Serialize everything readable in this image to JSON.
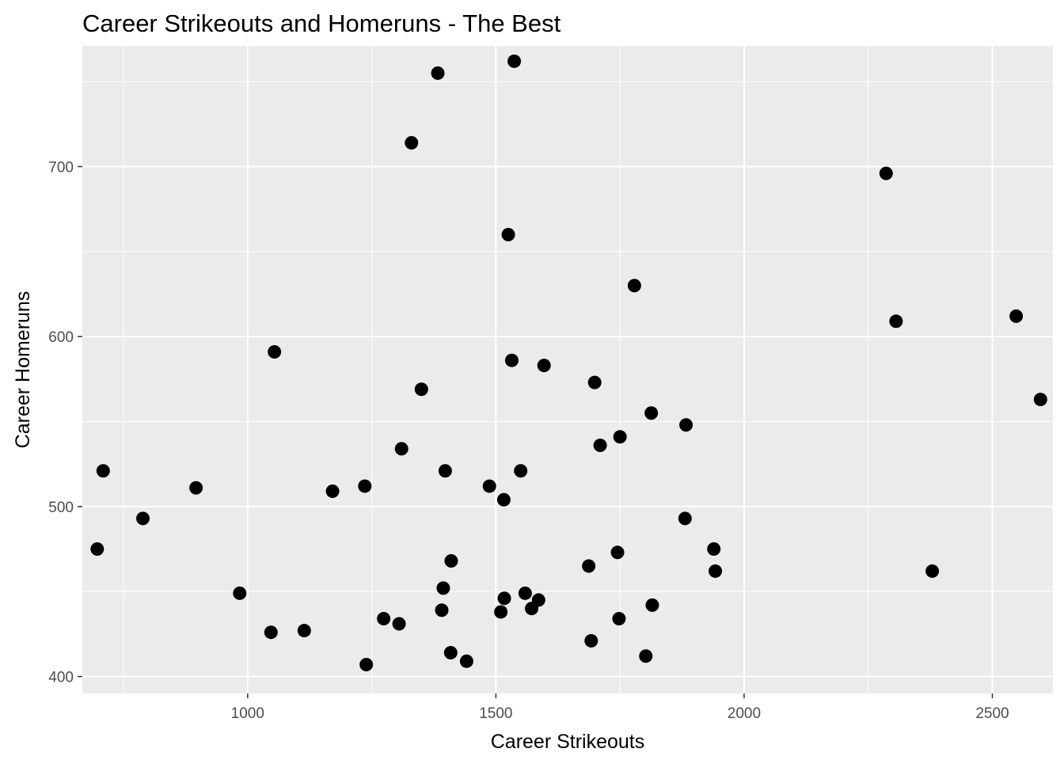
{
  "chart_data": {
    "type": "scatter",
    "title": "Career Strikeouts and Homeruns - The Best",
    "xlabel": "Career Strikeouts",
    "ylabel": "Career Homeruns",
    "xlim": [
      667,
      2622
    ],
    "ylim": [
      390,
      771
    ],
    "xticks": [
      1000,
      1500,
      2000,
      2500
    ],
    "yticks": [
      400,
      500,
      600,
      700
    ],
    "grid": true,
    "colors": {
      "panel": "#ebebeb",
      "grid": "#ffffff",
      "point": "#000000",
      "tick": "#4d4d4d"
    },
    "points": [
      {
        "x": 1383,
        "y": 755
      },
      {
        "x": 1537,
        "y": 762
      },
      {
        "x": 1330,
        "y": 714
      },
      {
        "x": 2286,
        "y": 696
      },
      {
        "x": 1525,
        "y": 660
      },
      {
        "x": 1779,
        "y": 630
      },
      {
        "x": 2548,
        "y": 612
      },
      {
        "x": 2306,
        "y": 609
      },
      {
        "x": 1054,
        "y": 591
      },
      {
        "x": 1532,
        "y": 586
      },
      {
        "x": 1597,
        "y": 583
      },
      {
        "x": 1699,
        "y": 573
      },
      {
        "x": 1350,
        "y": 569
      },
      {
        "x": 2597,
        "y": 563
      },
      {
        "x": 1813,
        "y": 555
      },
      {
        "x": 1883,
        "y": 548
      },
      {
        "x": 1750,
        "y": 541
      },
      {
        "x": 1710,
        "y": 536
      },
      {
        "x": 1310,
        "y": 534
      },
      {
        "x": 709,
        "y": 521
      },
      {
        "x": 1398,
        "y": 521
      },
      {
        "x": 1550,
        "y": 521
      },
      {
        "x": 1487,
        "y": 512
      },
      {
        "x": 1236,
        "y": 512
      },
      {
        "x": 896,
        "y": 511
      },
      {
        "x": 1171,
        "y": 509
      },
      {
        "x": 1516,
        "y": 504
      },
      {
        "x": 789,
        "y": 493
      },
      {
        "x": 1881,
        "y": 493
      },
      {
        "x": 697,
        "y": 475
      },
      {
        "x": 1939,
        "y": 475
      },
      {
        "x": 1745,
        "y": 473
      },
      {
        "x": 1410,
        "y": 468
      },
      {
        "x": 1687,
        "y": 465
      },
      {
        "x": 1942,
        "y": 462
      },
      {
        "x": 2379,
        "y": 462
      },
      {
        "x": 1394,
        "y": 452
      },
      {
        "x": 984,
        "y": 449
      },
      {
        "x": 1559,
        "y": 449
      },
      {
        "x": 1517,
        "y": 446
      },
      {
        "x": 1586,
        "y": 445
      },
      {
        "x": 1815,
        "y": 442
      },
      {
        "x": 1572,
        "y": 440
      },
      {
        "x": 1391,
        "y": 439
      },
      {
        "x": 1510,
        "y": 438
      },
      {
        "x": 1274,
        "y": 434
      },
      {
        "x": 1748,
        "y": 434
      },
      {
        "x": 1305,
        "y": 431
      },
      {
        "x": 1114,
        "y": 427
      },
      {
        "x": 1047,
        "y": 426
      },
      {
        "x": 1692,
        "y": 421
      },
      {
        "x": 1409,
        "y": 414
      },
      {
        "x": 1802,
        "y": 412
      },
      {
        "x": 1441,
        "y": 409
      },
      {
        "x": 1239,
        "y": 407
      }
    ]
  }
}
